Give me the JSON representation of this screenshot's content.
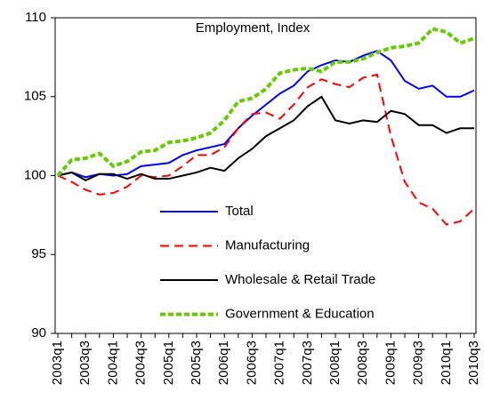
{
  "chart_data": {
    "type": "line",
    "title": "Employment, Index",
    "categories": [
      "2003q1",
      null,
      "2003q3",
      null,
      "2004q1",
      null,
      "2004q3",
      null,
      "2005q1",
      null,
      "2005q3",
      null,
      "2006q1",
      null,
      "2006q3",
      null,
      "2007q1",
      null,
      "2007q3",
      null,
      "2008q1",
      null,
      "2008q3",
      null,
      "2009q1",
      null,
      "2009q3",
      null,
      "2010q1",
      null,
      "2010q3"
    ],
    "series": [
      {
        "name": "Total",
        "color": "#0000ff",
        "dash": "solid",
        "values": [
          100,
          100.2,
          99.9,
          100.1,
          100.0,
          100.1,
          100.6,
          100.7,
          100.8,
          101.3,
          101.6,
          101.8,
          102.0,
          103.0,
          103.8,
          104.5,
          105.2,
          105.7,
          106.6,
          107.0,
          107.3,
          107.2,
          107.6,
          107.9,
          107.3,
          106.0,
          105.5,
          105.7,
          105.0,
          105.0,
          105.4
        ]
      },
      {
        "name": "Manufacturing",
        "color": "#ff0000",
        "dash": "dashed",
        "values": [
          100,
          99.6,
          99.1,
          98.8,
          98.9,
          99.3,
          100.0,
          99.9,
          100.0,
          100.6,
          101.3,
          101.3,
          101.8,
          103.0,
          103.9,
          104.0,
          103.6,
          104.5,
          105.6,
          106.1,
          105.8,
          105.6,
          106.2,
          106.4,
          102.5,
          99.6,
          98.3,
          97.9,
          96.9,
          97.1,
          97.9
        ]
      },
      {
        "name": "Wholesale & Retail Trade",
        "color": "#000000",
        "dash": "solid",
        "values": [
          100,
          100.2,
          99.7,
          100.1,
          100.1,
          99.8,
          100.1,
          99.8,
          99.8,
          100.0,
          100.2,
          100.5,
          100.3,
          101.1,
          101.7,
          102.5,
          103.0,
          103.5,
          104.4,
          105.0,
          103.5,
          103.3,
          103.5,
          103.4,
          104.1,
          103.9,
          103.2,
          103.2,
          102.7,
          103.0,
          103.0
        ]
      },
      {
        "name": "Government & Education",
        "color": "#66cc00",
        "dash": "dotted",
        "values": [
          100,
          101.0,
          101.1,
          101.4,
          100.6,
          100.9,
          101.5,
          101.6,
          102.1,
          102.2,
          102.4,
          102.7,
          103.5,
          104.7,
          104.9,
          105.5,
          106.5,
          106.7,
          106.8,
          106.6,
          107.2,
          107.2,
          107.4,
          107.8,
          108.1,
          108.2,
          108.4,
          109.3,
          109.1,
          108.4,
          108.7
        ]
      }
    ],
    "ylim": [
      90,
      110
    ],
    "yticks": [
      90,
      95,
      100,
      105,
      110
    ],
    "grid": false,
    "legend": "inside-bottom-left"
  }
}
